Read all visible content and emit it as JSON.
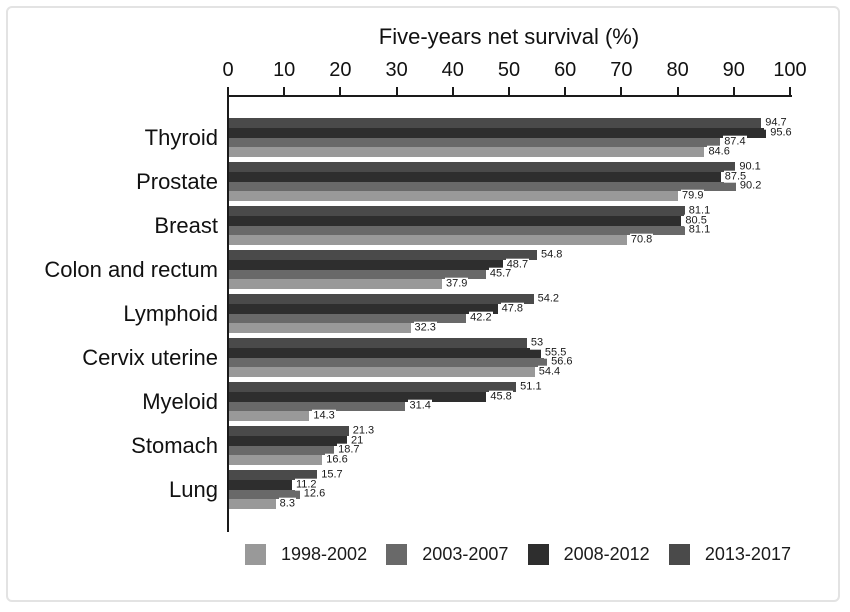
{
  "frame": {
    "background": "#ffffff",
    "border_color": "#e3e3e3"
  },
  "chart_data": {
    "type": "bar",
    "orientation": "horizontal",
    "title": "Five-years net survival (%)",
    "xlabel": "Five-years net survival (%)",
    "ylabel": "",
    "xlim": [
      0,
      100
    ],
    "grid": false,
    "axis_position": "top",
    "ticks": [
      0,
      10,
      20,
      30,
      40,
      50,
      60,
      70,
      80,
      90,
      100
    ],
    "categories": [
      "Thyroid",
      "Prostate",
      "Breast",
      "Colon and rectum",
      "Lymphoid",
      "Cervix uterine",
      "Myeloid",
      "Stomach",
      "Lung"
    ],
    "series": [
      {
        "name": "1998-2002",
        "color": "#999999",
        "values": [
          84.6,
          79.9,
          70.8,
          37.9,
          32.3,
          54.4,
          14.3,
          16.6,
          8.3
        ]
      },
      {
        "name": "2003-2007",
        "color": "#696969",
        "values": [
          87.4,
          90.2,
          81.1,
          45.7,
          42.2,
          56.6,
          31.4,
          18.7,
          12.6
        ]
      },
      {
        "name": "2008-2012",
        "color": "#2e2e2e",
        "values": [
          95.6,
          87.5,
          80.5,
          48.7,
          47.8,
          55.5,
          45.8,
          21,
          11.2
        ]
      },
      {
        "name": "2013-2017",
        "color": "#4a4a4a",
        "values": [
          94.7,
          90.1,
          81.1,
          54.8,
          54.2,
          53,
          51.1,
          21.3,
          15.7
        ]
      }
    ],
    "bar_display_order_top_to_bottom": [
      "2013-2017",
      "2008-2012",
      "2003-2007",
      "1998-2002"
    ],
    "value_labels_shown": true,
    "legend": {
      "position": "bottom",
      "entries": [
        "1998-2002",
        "2003-2007",
        "2008-2012",
        "2013-2017"
      ]
    }
  }
}
